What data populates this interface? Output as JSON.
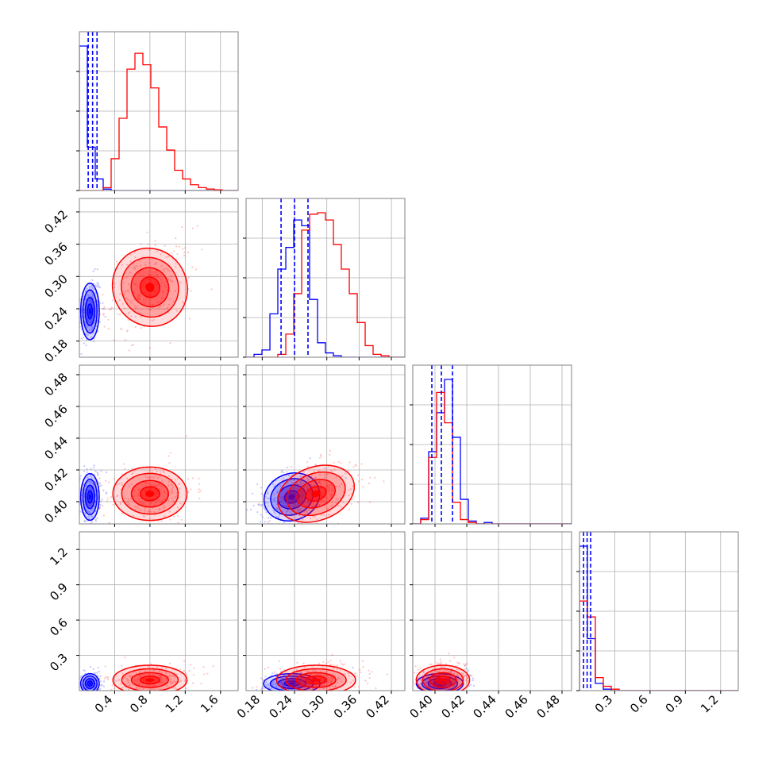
{
  "colors": {
    "series_a": "#0000ff",
    "series_b": "#ff0000",
    "grid": "#b0b0b0",
    "frame": "#808080"
  },
  "chart_data": {
    "type": "corner",
    "grid": true,
    "series": [
      {
        "color": "#0000ff",
        "quantiles": [
          [
            0.1,
            0.15,
            0.2
          ],
          [
            0.215,
            0.24,
            0.265
          ],
          [
            0.398,
            0.404,
            0.411
          ],
          [
            0.035,
            0.065,
            0.095
          ]
        ],
        "center": [
          0.12,
          0.235,
          0.403,
          0.06
        ],
        "spread": [
          0.05,
          0.025,
          0.007,
          0.04
        ]
      },
      {
        "color": "#ff0000",
        "quantiles": [],
        "center": [
          0.8,
          0.28,
          0.405,
          0.09
        ],
        "spread": [
          0.2,
          0.035,
          0.008,
          0.06
        ]
      }
    ],
    "parameters": [
      {
        "range": [
          0.0,
          1.8
        ],
        "ticks": [
          "0.4",
          "0.8",
          "1.2",
          "1.6"
        ],
        "tick_values": [
          0.4,
          0.8,
          1.2,
          1.6
        ]
      },
      {
        "range": [
          0.15,
          0.445
        ],
        "ticks": [
          "0.18",
          "0.24",
          "0.30",
          "0.36",
          "0.42"
        ],
        "tick_values": [
          0.18,
          0.24,
          0.3,
          0.36,
          0.42
        ]
      },
      {
        "range": [
          0.386,
          0.486
        ],
        "ticks": [
          "0.40",
          "0.42",
          "0.44",
          "0.46",
          "0.48"
        ],
        "tick_values": [
          0.4,
          0.42,
          0.44,
          0.46,
          0.48
        ]
      },
      {
        "range": [
          0.0,
          1.35
        ],
        "ticks": [
          "0.3",
          "0.6",
          "0.9",
          "1.2"
        ],
        "tick_values": [
          0.3,
          0.6,
          0.9,
          1.2
        ]
      }
    ],
    "histograms": [
      {
        "bins": [
          0.0,
          0.09,
          0.18,
          0.27,
          0.36,
          0.45,
          0.54,
          0.63,
          0.72,
          0.81,
          0.9,
          0.99,
          1.08,
          1.17,
          1.26,
          1.35,
          1.44,
          1.53,
          1.62,
          1.71,
          1.8
        ],
        "series_a": [
          1.0,
          0.3,
          0.08,
          0.01,
          0,
          0,
          0,
          0,
          0,
          0,
          0,
          0,
          0,
          0,
          0,
          0,
          0,
          0,
          0,
          0
        ],
        "series_b": [
          0,
          0,
          0,
          0.02,
          0.22,
          0.5,
          0.84,
          0.95,
          0.87,
          0.71,
          0.44,
          0.28,
          0.14,
          0.08,
          0.04,
          0.02,
          0.01,
          0.005,
          0,
          0
        ]
      },
      {
        "bins": [
          0.15,
          0.1648,
          0.1795,
          0.1943,
          0.209,
          0.2238,
          0.2385,
          0.2533,
          0.268,
          0.2828,
          0.2975,
          0.3123,
          0.327,
          0.3418,
          0.3565,
          0.3713,
          0.386,
          0.4008,
          0.4155,
          0.4303,
          0.445
        ],
        "series_a": [
          0,
          0.02,
          0.05,
          0.3,
          0.61,
          0.76,
          0.95,
          0.91,
          0.4,
          0.1,
          0.03,
          0.01,
          0,
          0,
          0,
          0,
          0,
          0,
          0,
          0
        ],
        "series_b": [
          0,
          0,
          0,
          0,
          0.02,
          0.16,
          0.44,
          0.88,
          0.99,
          1.0,
          0.95,
          0.78,
          0.61,
          0.44,
          0.24,
          0.08,
          0.02,
          0.01,
          0,
          0
        ]
      },
      {
        "bins": [
          0.386,
          0.391,
          0.396,
          0.401,
          0.406,
          0.411,
          0.416,
          0.421,
          0.426,
          0.431,
          0.436,
          0.441,
          0.446,
          0.451,
          0.456,
          0.461,
          0.466,
          0.471,
          0.476,
          0.481,
          0.486
        ],
        "series_a": [
          0,
          0.04,
          0.5,
          0.77,
          1.0,
          0.6,
          0.17,
          0.02,
          0,
          0.01,
          0,
          0,
          0,
          0,
          0,
          0,
          0,
          0,
          0,
          0
        ],
        "series_b": [
          0,
          0.03,
          0.46,
          0.91,
          0.7,
          0.15,
          0.03,
          0.01,
          0,
          0,
          0,
          0,
          0,
          0,
          0,
          0,
          0,
          0,
          0,
          0
        ]
      },
      {
        "bins": [
          0.0,
          0.0675,
          0.135,
          0.2025,
          0.27,
          0.3375,
          0.405,
          0.4725,
          0.54,
          0.6075,
          0.675,
          0.7425,
          0.81,
          0.8775,
          0.945,
          1.0125,
          1.08,
          1.1475,
          1.215,
          1.2825,
          1.35
        ],
        "series_a": [
          1.0,
          0.36,
          0.05,
          0.01,
          0,
          0,
          0,
          0,
          0,
          0,
          0,
          0,
          0,
          0,
          0,
          0,
          0,
          0,
          0,
          0
        ],
        "series_b": [
          0.62,
          0.51,
          0.09,
          0.03,
          0.01,
          0,
          0,
          0,
          0,
          0,
          0,
          0,
          0,
          0,
          0,
          0,
          0,
          0,
          0,
          0
        ]
      }
    ]
  }
}
